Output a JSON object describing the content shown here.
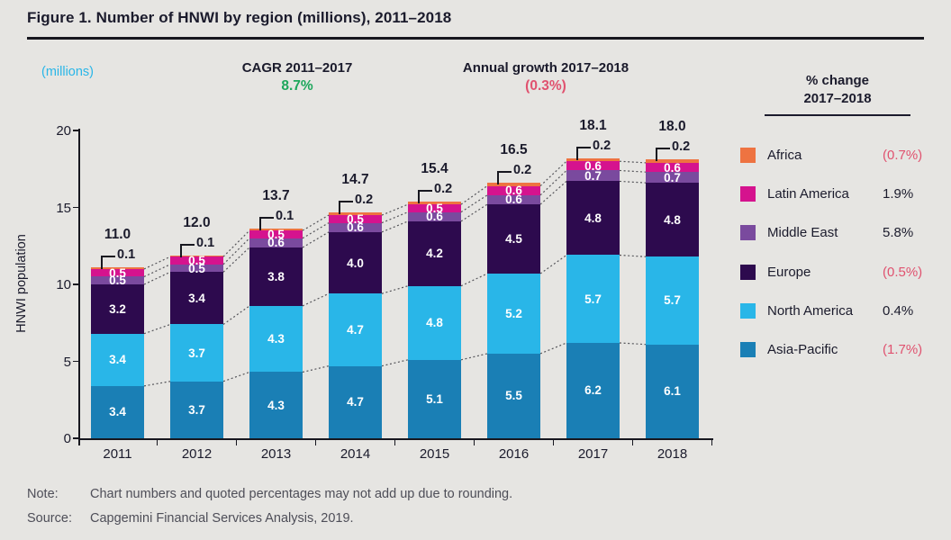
{
  "header": {
    "title": "Figure 1. Number of HNWI by region (millions), 2011–2018",
    "unit_label": "(millions)",
    "cagr_label": "CAGR 2011–2017",
    "cagr_value": "8.7%",
    "growth_label": "Annual growth 2017–2018",
    "growth_value": "(0.3%)"
  },
  "legend": {
    "title_line1": "% change",
    "title_line2": "2017–2018",
    "items": [
      {
        "label": "Africa",
        "value": "(0.7%)",
        "negative": true,
        "color": "#ee7341"
      },
      {
        "label": "Latin America",
        "value": "1.9%",
        "negative": false,
        "color": "#d5138e"
      },
      {
        "label": "Middle East",
        "value": "5.8%",
        "negative": false,
        "color": "#7a4a9e"
      },
      {
        "label": "Europe",
        "value": "(0.5%)",
        "negative": true,
        "color": "#2d0a4e"
      },
      {
        "label": "North America",
        "value": "0.4%",
        "negative": false,
        "color": "#29b6e8"
      },
      {
        "label": "Asia-Pacific",
        "value": "(1.7%)",
        "negative": true,
        "color": "#1a7fb5"
      }
    ]
  },
  "chart_data": {
    "type": "bar",
    "stacked": true,
    "title": "Number of HNWI by region (millions), 2011–2018",
    "xlabel": "",
    "ylabel": "HNWI population",
    "ylim": [
      0,
      20
    ],
    "yticks": [
      0,
      5,
      10,
      15,
      20
    ],
    "grid": false,
    "legend_position": "right",
    "categories": [
      "2011",
      "2012",
      "2013",
      "2014",
      "2015",
      "2016",
      "2017",
      "2018"
    ],
    "series": [
      {
        "name": "Asia-Pacific",
        "color": "#1a7fb5",
        "values": [
          3.4,
          3.7,
          4.3,
          4.7,
          5.1,
          5.5,
          6.2,
          6.1
        ]
      },
      {
        "name": "North America",
        "color": "#29b6e8",
        "values": [
          3.4,
          3.7,
          4.3,
          4.7,
          4.8,
          5.2,
          5.7,
          5.7
        ]
      },
      {
        "name": "Europe",
        "color": "#2d0a4e",
        "values": [
          3.2,
          3.4,
          3.8,
          4.0,
          4.2,
          4.5,
          4.8,
          4.8
        ]
      },
      {
        "name": "Middle East",
        "color": "#7a4a9e",
        "values": [
          0.5,
          0.5,
          0.6,
          0.6,
          0.6,
          0.6,
          0.7,
          0.7
        ]
      },
      {
        "name": "Latin America",
        "color": "#d5138e",
        "values": [
          0.5,
          0.5,
          0.5,
          0.5,
          0.5,
          0.6,
          0.6,
          0.6
        ]
      },
      {
        "name": "Africa",
        "color": "#ee7341",
        "values": [
          0.1,
          0.1,
          0.1,
          0.2,
          0.2,
          0.2,
          0.2,
          0.2
        ],
        "callout": true
      }
    ],
    "totals": [
      "11.0",
      "12.0",
      "13.7",
      "14.7",
      "15.4",
      "16.5",
      "18.1",
      "18.0"
    ]
  },
  "footer": {
    "note_label": "Note:",
    "note_text": "Chart numbers and quoted percentages may not add up due to rounding.",
    "source_label": "Source:",
    "source_text": "Capgemini Financial Services Analysis, 2019."
  },
  "colors": {
    "background": "#e6e5e2",
    "text": "#1b1b2c",
    "accent_cyan": "#29b6e8",
    "accent_green": "#1ea75c",
    "accent_pink": "#e0526f",
    "muted_text": "#4e4e58",
    "axis": "#17171f"
  }
}
